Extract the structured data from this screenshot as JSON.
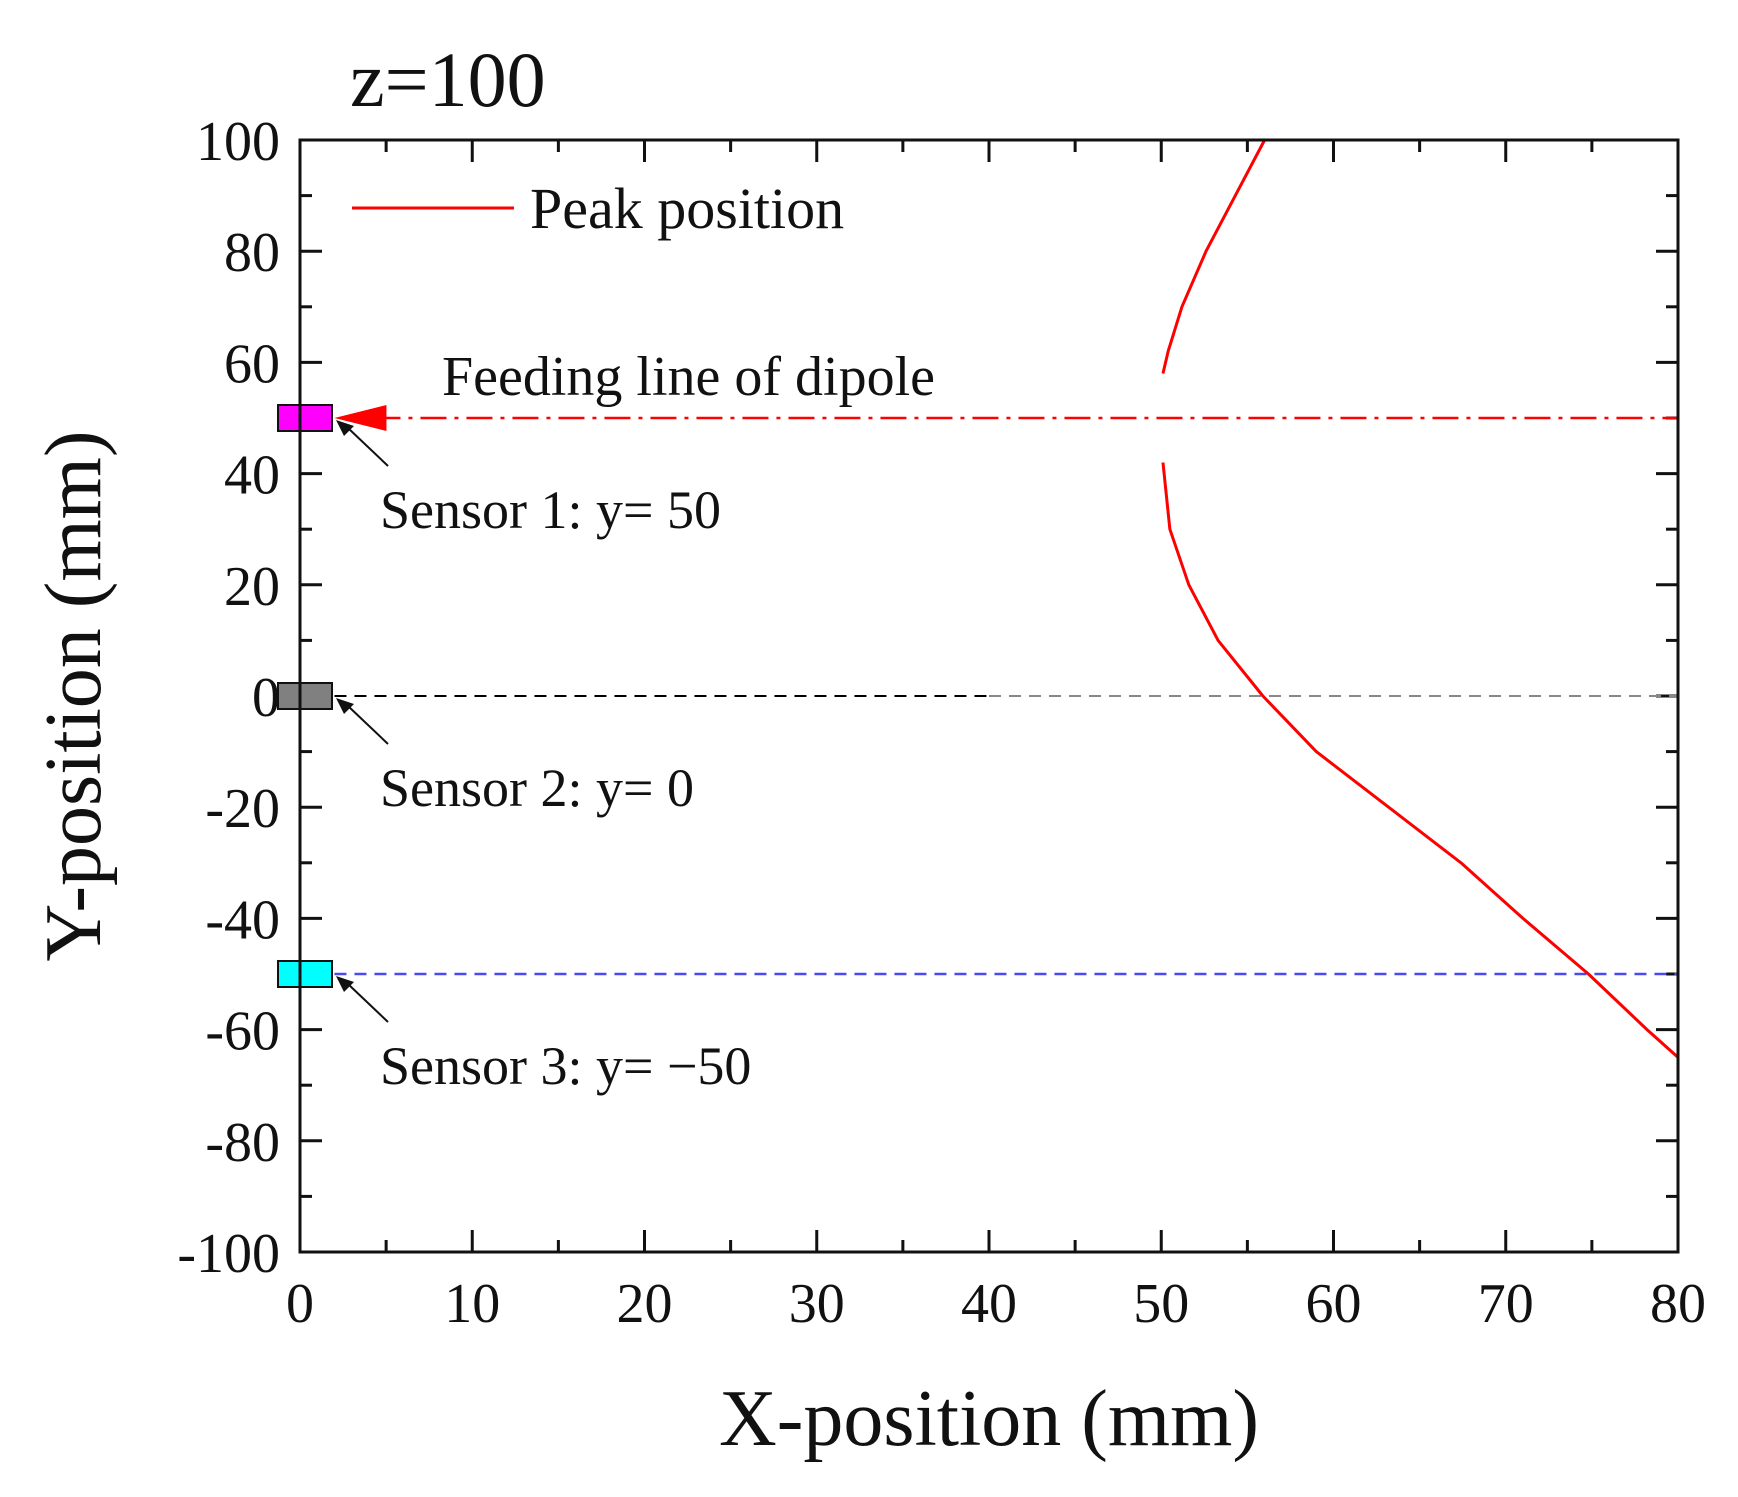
{
  "chart_data": {
    "type": "line",
    "title": "z=100",
    "xlabel": "X-position (mm)",
    "ylabel": "Y-position (mm)",
    "xlim": [
      0,
      80
    ],
    "ylim": [
      -100,
      100
    ],
    "xticks": [
      0,
      10,
      20,
      30,
      40,
      50,
      60,
      70,
      80
    ],
    "yticks": [
      -100,
      -80,
      -60,
      -40,
      -20,
      0,
      20,
      40,
      60,
      80,
      100
    ],
    "grid": false,
    "legend": {
      "position": "top-left",
      "entries": [
        "Peak position"
      ]
    },
    "series": [
      {
        "name": "Peak position",
        "color": "#ff0000",
        "segments": [
          {
            "x": [
              56.0,
              54.3,
              52.6,
              51.2,
              50.4,
              50.1
            ],
            "y": [
              100,
              90,
              80,
              70,
              62,
              58
            ]
          },
          {
            "x": [
              50.1,
              50.5,
              51.6,
              53.3,
              55.9,
              59.0,
              63.2,
              67.4,
              71.0,
              74.8,
              78.2,
              80.0
            ],
            "y": [
              42,
              30,
              20,
              10,
              0,
              -10,
              -20,
              -30,
              -40,
              -50,
              -60,
              -65
            ]
          }
        ]
      }
    ],
    "reference_lines": [
      {
        "label": "Feeding line of dipole",
        "y": 50,
        "style": "dash-dot",
        "color": "#ff0000",
        "x_start": 2,
        "x_end": 80,
        "arrow": true
      },
      {
        "label": "",
        "y": 0,
        "style": "dashed",
        "color": "#000000",
        "x_start": 2,
        "x_end": 40,
        "x_end_alt": 80,
        "color_alt": "#888888"
      },
      {
        "label": "",
        "y": -50,
        "style": "dashed",
        "color": "#4a4af0",
        "x_start": 2,
        "x_end": 80
      }
    ],
    "sensors": [
      {
        "label": "Sensor 1: y= 50",
        "y": 50,
        "color": "#ff00ff"
      },
      {
        "label": "Sensor 2: y= 0",
        "y": 0,
        "color": "#808080"
      },
      {
        "label": "Sensor 3: y= −50",
        "y": -50,
        "color": "#00ffff"
      }
    ]
  }
}
